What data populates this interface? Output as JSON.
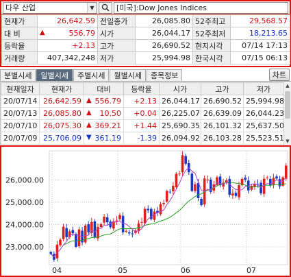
{
  "search": {
    "symbol": "다우 산업",
    "market_label": "[미국]:Dow Jones Indices"
  },
  "quote": {
    "rows": [
      [
        {
          "label": "현재가"
        },
        {
          "value": "26,642.59",
          "color": "red"
        },
        {
          "label": "전일종가"
        },
        {
          "value": "26,085.80"
        },
        {
          "label": "52주최고"
        },
        {
          "value": "29,568.57",
          "color": "red"
        }
      ],
      [
        {
          "label": "대  비"
        },
        {
          "value": "556.79",
          "color": "red",
          "arrow": "▲"
        },
        {
          "label": "시가"
        },
        {
          "value": "26,044.17"
        },
        {
          "label": "52주최저"
        },
        {
          "value": "18,213.65",
          "color": "blue"
        }
      ],
      [
        {
          "label": "등락율"
        },
        {
          "value": "+2.13",
          "color": "red"
        },
        {
          "label": "고가"
        },
        {
          "value": "26,690.52"
        },
        {
          "label": "현지시각"
        },
        {
          "value": "07/14 17:13"
        }
      ],
      [
        {
          "label": "거래량"
        },
        {
          "value": "407,342,248"
        },
        {
          "label": "저가"
        },
        {
          "value": "25,994.98"
        },
        {
          "label": "한국시각"
        },
        {
          "value": "07/15 06:13"
        }
      ]
    ]
  },
  "tabs": [
    "분별시세",
    "일별시세",
    "주별시세",
    "월별시세",
    "종목정보"
  ],
  "active_tab": 1,
  "chart_button": "차트",
  "daily": {
    "headers": [
      "현재일자",
      "현재가",
      "대비",
      "등락율",
      "시가",
      "고가",
      "저가"
    ],
    "rows": [
      {
        "date": "20/07/14",
        "price": "26,642.59",
        "arrow": "▲",
        "change": "556.79",
        "rate": "+2.13",
        "open": "26,044.17",
        "high": "26,690.52",
        "low": "25,994.98",
        "color": "red"
      },
      {
        "date": "20/07/13",
        "price": "26,085.80",
        "arrow": "▲",
        "change": "10.50",
        "rate": "+0.04",
        "open": "26,225.07",
        "high": "26,639.09",
        "low": "26,044.23",
        "color": "red"
      },
      {
        "date": "20/07/10",
        "price": "26,075.30",
        "arrow": "▲",
        "change": "369.21",
        "rate": "+1.44",
        "open": "25,690.35",
        "high": "26,101.32",
        "low": "25,637.50",
        "color": "red"
      },
      {
        "date": "20/07/09",
        "price": "25,706.09",
        "arrow": "▼",
        "change": "361.19",
        "rate": "-1.39",
        "open": "26,094.92",
        "high": "26,103.28",
        "low": "25,523.51",
        "color": "blue"
      }
    ]
  },
  "chart_data": {
    "type": "candlestick",
    "y_ticks": [
      "26,000.00",
      "25,000.00",
      "24,000.00",
      "23,000.00"
    ],
    "y_tick_values": [
      26000,
      25000,
      24000,
      23000
    ],
    "x_ticks": [
      "04",
      "05",
      "06",
      "07"
    ],
    "x_tick_index": [
      0,
      21,
      41,
      62
    ],
    "ylim": [
      22200,
      27300
    ],
    "grid": true,
    "colors": {
      "up": "#e0201a",
      "down": "#1a38c8",
      "ma_short": "#b040c8",
      "ma_long": "#20a020"
    },
    "closes": [
      22680,
      22420,
      23100,
      23320,
      23900,
      23430,
      23690,
      23610,
      23000,
      23780,
      23200,
      23950,
      23650,
      24110,
      23440,
      23890,
      24020,
      24350,
      24100,
      23880,
      24140,
      24180,
      24420,
      23650,
      23710,
      23600,
      23560,
      23730,
      24050,
      24110,
      24700,
      24640,
      24240,
      24580,
      24520,
      24910,
      24960,
      25500,
      25460,
      25730,
      26270,
      26280,
      27100,
      26720,
      26340,
      25500,
      25800,
      25180,
      24870,
      26060,
      26010,
      25460,
      25800,
      26120,
      25760,
      25870,
      25980,
      25330,
      25390,
      25280,
      25760,
      26040,
      26000,
      25530,
      25730,
      25820,
      25810,
      25400,
      26050,
      26100,
      25760,
      26090,
      26060,
      25710,
      26110,
      26640
    ]
  }
}
